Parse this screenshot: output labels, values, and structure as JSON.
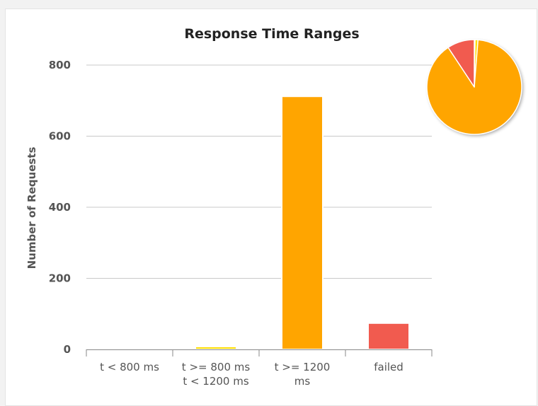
{
  "chart_data": {
    "type": "bar",
    "title": "Response Time Ranges",
    "ylabel": "Number of Requests",
    "xlabel": "",
    "ylim": [
      0,
      800
    ],
    "yticks": [
      0,
      200,
      400,
      600,
      800
    ],
    "grid": true,
    "categories": [
      [
        "t < 800 ms"
      ],
      [
        "t >= 800 ms",
        "t < 1200 ms"
      ],
      [
        "t >= 1200",
        "ms"
      ],
      [
        "failed"
      ]
    ],
    "values": [
      2,
      8,
      712,
      74
    ],
    "colors": [
      "#4caf50",
      "#ffdd00",
      "#ffa500",
      "#f15b4f"
    ],
    "inset_pie": {
      "type": "pie",
      "values": [
        2,
        8,
        712,
        74
      ],
      "colors": [
        "#4caf50",
        "#ffdd00",
        "#ffa500",
        "#f15b4f"
      ]
    }
  }
}
